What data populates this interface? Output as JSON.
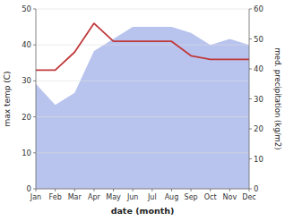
{
  "chart_data": {
    "type": "line",
    "xlabel": "date (month)",
    "ylabel": "max temp (C)",
    "y2label": "med. precipitation (kg/m2)",
    "categories": [
      "Jan",
      "Feb",
      "Mar",
      "Apr",
      "May",
      "Jun",
      "Jul",
      "Aug",
      "Sep",
      "Oct",
      "Nov",
      "Dec"
    ],
    "series": [
      {
        "type": "area",
        "axis": "y2",
        "color": "#b8c4ee",
        "values": [
          35,
          28,
          32,
          46,
          50,
          54,
          54,
          54,
          52,
          48,
          50,
          48
        ]
      },
      {
        "type": "line",
        "color": "#c0393b",
        "values": [
          33,
          33,
          38,
          46,
          41,
          41,
          41,
          41,
          37,
          36,
          36,
          36
        ]
      }
    ],
    "ylim": [
      0,
      50
    ],
    "yticks": [
      0,
      10,
      20,
      30,
      40,
      50
    ],
    "y2lim": [
      0,
      60
    ],
    "y2ticks": [
      0,
      10,
      20,
      30,
      40,
      50,
      60
    ],
    "grid": true
  }
}
